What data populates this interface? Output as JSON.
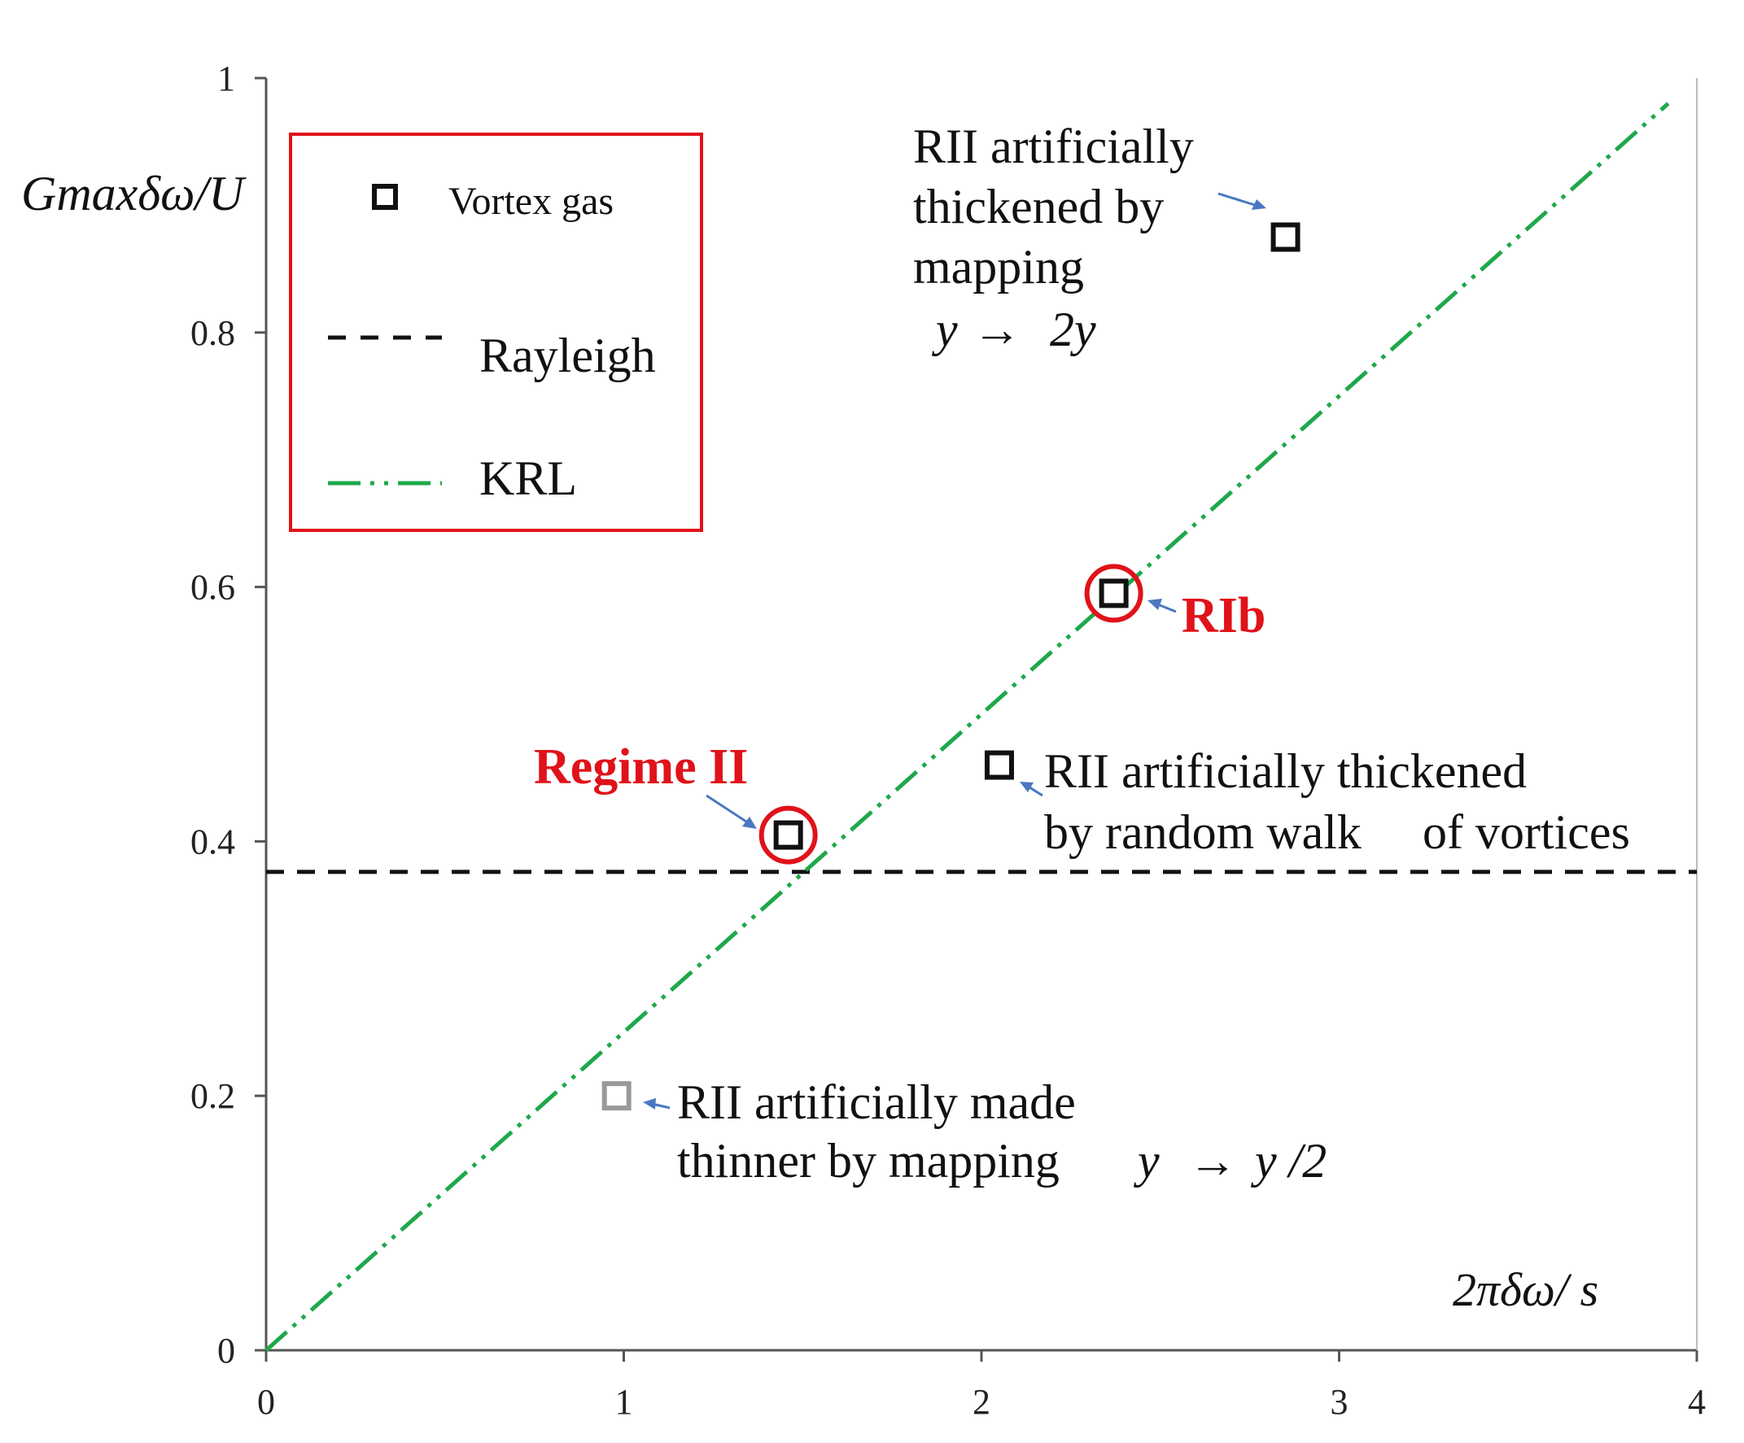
{
  "chart_data": {
    "type": "scatter",
    "xlabel": "2πδω/ s",
    "ylabel": "Gmaxδω/U",
    "xlim": [
      0,
      4
    ],
    "ylim": [
      0,
      1
    ],
    "x_ticks": [
      "0",
      "1",
      "2",
      "3",
      "4"
    ],
    "y_ticks": [
      "0",
      "0.2",
      "0.4",
      "0.6",
      "0.8",
      "1"
    ],
    "grid": false,
    "legend_position": "top-left",
    "legend": {
      "vortex": "Vortex gas",
      "rayleigh": "Rayleigh",
      "krl": "KRL"
    },
    "colors": {
      "krl": "#1ea84a",
      "highlight": "#e0121a",
      "marker": "#111111",
      "marker_faded": "#999999",
      "arrow": "#4a78c0"
    },
    "series": [
      {
        "name": "Vortex gas",
        "points": [
          {
            "x": 1.46,
            "y": 0.405,
            "highlight": true
          },
          {
            "x": 2.37,
            "y": 0.595,
            "highlight": true
          },
          {
            "x": 2.05,
            "y": 0.46,
            "highlight": false
          },
          {
            "x": 2.85,
            "y": 0.875,
            "highlight": false
          },
          {
            "x": 0.98,
            "y": 0.2,
            "highlight": false,
            "faded": true
          }
        ]
      },
      {
        "name": "Rayleigh",
        "line": "horizontal",
        "y": 0.376
      },
      {
        "name": "KRL",
        "line": "through-origin",
        "slope": 0.25
      }
    ],
    "annotations": {
      "regime_ii": "Regime II",
      "rib": "RIb",
      "top": {
        "line1": "RII artificially",
        "line2": "thickened by",
        "line3": "mapping",
        "math_y1": "y",
        "math_arrow": "→",
        "math_y2": "2y"
      },
      "mid": {
        "line1": "RII artificially thickened",
        "line2a": "by random walk",
        "line2b": "of vortices"
      },
      "low": {
        "line1": "RII artificially made",
        "line2": "thinner by mapping",
        "math_y1": "y",
        "math_arrow": "→",
        "math_y2": "y /2"
      }
    }
  }
}
